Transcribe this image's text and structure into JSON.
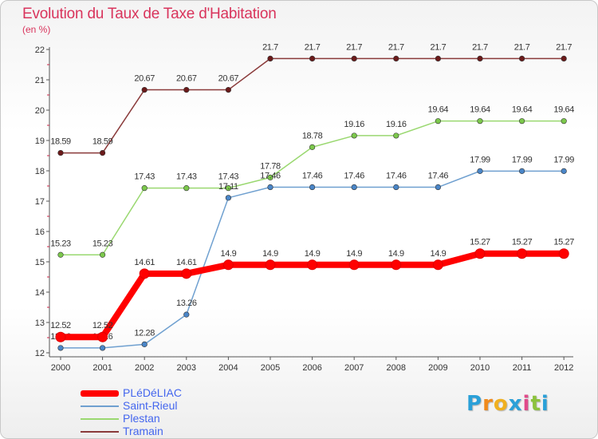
{
  "title": "Evolution du Taux de Taxe d'Habitation",
  "subtitle": "(en %)",
  "logo": {
    "letters": [
      "P",
      "r",
      "o",
      "x",
      "i",
      "t",
      "i"
    ],
    "colors": [
      "#2aa0d8",
      "#f08a1c",
      "#f0b020",
      "#2aa0d8",
      "#e04a8a",
      "#8cc23c",
      "#2aa0d8"
    ]
  },
  "chart_data": {
    "type": "line",
    "x": [
      "2000",
      "2001",
      "2002",
      "2003",
      "2004",
      "2005",
      "2006",
      "2007",
      "2008",
      "2009",
      "2010",
      "2011",
      "2012"
    ],
    "ylim": [
      12,
      22
    ],
    "yticks": [
      "12",
      "13",
      "14",
      "15",
      "16",
      "17",
      "18",
      "19",
      "20",
      "21",
      "22"
    ],
    "grid": false,
    "legend_placement": "bottom-left",
    "series": [
      {
        "name": "PLéDéLIAC",
        "color": "#ff0000",
        "thick": true,
        "values": [
          12.52,
          12.52,
          14.61,
          14.61,
          14.9,
          14.9,
          14.9,
          14.9,
          14.9,
          14.9,
          15.27,
          15.27,
          15.27
        ],
        "labels": [
          "12.52",
          "12.52",
          "14.61",
          "14.61",
          "14.9",
          "14.9",
          "14.9",
          "14.9",
          "14.9",
          "14.9",
          "15.27",
          "15.27",
          "15.27"
        ]
      },
      {
        "name": "Saint-Rieul",
        "color": "#6fa0d0",
        "marker": "#4a86c8",
        "values": [
          12.16,
          12.16,
          12.28,
          13.26,
          17.11,
          17.46,
          17.46,
          17.46,
          17.46,
          17.46,
          17.99,
          17.99,
          17.99
        ],
        "labels": [
          "12.16",
          "12.16",
          "12.28",
          "13.26",
          "17.11",
          "17.46",
          "17.46",
          "17.46",
          "17.46",
          "17.46",
          "17.99",
          "17.99",
          "17.99"
        ]
      },
      {
        "name": "Plestan",
        "color": "#9ad870",
        "marker": "#7cc84c",
        "values": [
          15.23,
          15.23,
          17.43,
          17.43,
          17.43,
          17.78,
          18.78,
          19.16,
          19.16,
          19.64,
          19.64,
          19.64,
          19.64
        ],
        "labels": [
          "15.23",
          "15.23",
          "17.43",
          "17.43",
          "17.43",
          "17.78",
          "18.78",
          "19.16",
          "19.16",
          "19.64",
          "19.64",
          "19.64",
          "19.64"
        ]
      },
      {
        "name": "Tramain",
        "color": "#8a3a3a",
        "marker": "#6b1a1a",
        "values": [
          18.59,
          18.59,
          20.67,
          20.67,
          20.67,
          21.7,
          21.7,
          21.7,
          21.7,
          21.7,
          21.7,
          21.7,
          21.7
        ],
        "labels": [
          "18.59",
          "18.59",
          "20.67",
          "20.67",
          "20.67",
          "21.7",
          "21.7",
          "21.7",
          "21.7",
          "21.7",
          "21.7",
          "21.7",
          "21.7"
        ]
      }
    ]
  }
}
